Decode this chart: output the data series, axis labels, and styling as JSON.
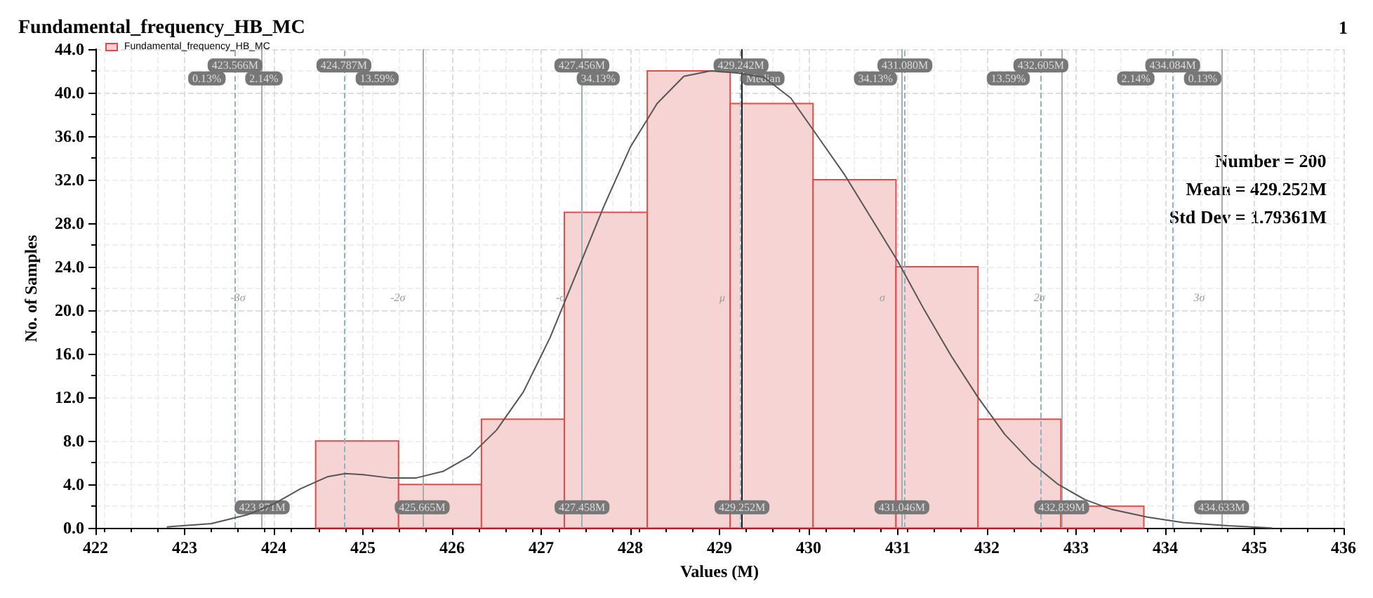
{
  "chart_data": {
    "type": "histogram",
    "title": "Fundamental_frequency_HB_MC",
    "subtitle": "1",
    "xlabel": "Values (M)",
    "ylabel": "No. of Samples",
    "bins": [
      424.47,
      425.4,
      426.33,
      427.26,
      428.19,
      429.12,
      430.05,
      430.98,
      431.9,
      432.83,
      433.76
    ],
    "series": [
      {
        "name": "Fundamental_frequency_HB_MC",
        "color": "#f7d4d4",
        "values": [
          8,
          4,
          10,
          29,
          42,
          39,
          32,
          24,
          10,
          2
        ]
      },
      {
        "type": "line",
        "color": "#555555",
        "x": [
          422.8,
          423.3,
          423.7,
          424.0,
          424.3,
          424.6,
          424.8,
          425.0,
          425.3,
          425.6,
          425.9,
          426.2,
          426.5,
          426.8,
          427.1,
          427.4,
          427.7,
          428.0,
          428.3,
          428.6,
          428.9,
          429.2,
          429.5,
          429.8,
          430.1,
          430.4,
          430.7,
          431.0,
          431.3,
          431.6,
          431.9,
          432.2,
          432.5,
          432.8,
          433.1,
          433.4,
          433.8,
          434.2,
          434.7,
          435.2
        ],
        "values": [
          0.1,
          0.4,
          1.2,
          2.2,
          3.6,
          4.7,
          5.0,
          4.9,
          4.6,
          4.6,
          5.2,
          6.6,
          9.0,
          12.5,
          17.5,
          23.5,
          29.5,
          35.0,
          39.0,
          41.5,
          42.0,
          41.8,
          41.4,
          39.5,
          36.0,
          32.5,
          28.5,
          24.5,
          20.0,
          15.8,
          12.0,
          8.6,
          6.0,
          4.0,
          2.6,
          1.7,
          1.0,
          0.5,
          0.2,
          0
        ]
      }
    ],
    "xlim": [
      422,
      436
    ],
    "xticks": [
      422,
      423,
      424,
      425,
      426,
      427,
      428,
      429,
      430,
      431,
      432,
      433,
      434,
      435,
      436
    ],
    "ylim": [
      0,
      44
    ],
    "yticks": [
      {
        "value": 0,
        "label": "0.0"
      },
      {
        "value": 4,
        "label": "4.0"
      },
      {
        "value": 8,
        "label": "8.0"
      },
      {
        "value": 12,
        "label": "12.0"
      },
      {
        "value": 16,
        "label": "16.0"
      },
      {
        "value": 20,
        "label": "20.0"
      },
      {
        "value": 24,
        "label": "24.0"
      },
      {
        "value": 28,
        "label": "28.0"
      },
      {
        "value": 32,
        "label": "32.0"
      },
      {
        "value": 36,
        "label": "36.0"
      },
      {
        "value": 40,
        "label": "40.0"
      },
      {
        "value": 44,
        "label": "44.0"
      }
    ],
    "grid": true,
    "legend": "top left",
    "ref_lines": [
      {
        "axis": "x",
        "value": 429.252,
        "label": "429.252M",
        "color": "#222222"
      },
      {
        "axis": "x",
        "value": 427.458,
        "label": "427.458M",
        "color": "#aaaaaa"
      },
      {
        "axis": "x",
        "value": 431.046,
        "label": "431.046M",
        "color": "#aaaaaa"
      },
      {
        "axis": "x",
        "value": 425.665,
        "label": "425.665M",
        "color": "#aaaaaa"
      },
      {
        "axis": "x",
        "value": 432.839,
        "label": "432.839M",
        "color": "#aaaaaa"
      },
      {
        "axis": "x",
        "value": 423.871,
        "label": "423.871M",
        "color": "#aaaaaa"
      },
      {
        "axis": "x",
        "value": 434.633,
        "label": "434.633M",
        "color": "#aaaaaa"
      },
      {
        "axis": "x",
        "value": 423.566,
        "label": "423.566M",
        "color": "#8fb3c4",
        "line_style": "dashed"
      },
      {
        "axis": "x",
        "value": 424.787,
        "label": "424.787M",
        "color": "#8fb3c4",
        "line_style": "dashed"
      },
      {
        "axis": "x",
        "value": 427.456,
        "label": "427.456M",
        "color": "#8fb3c4",
        "line_style": "dashed"
      },
      {
        "axis": "x",
        "value": 429.242,
        "label": "429.242M",
        "color": "#8fb3c4",
        "line_style": "dashed"
      },
      {
        "axis": "x",
        "value": 431.08,
        "label": "431.080M",
        "color": "#8fb3c4",
        "line_style": "dashed"
      },
      {
        "axis": "x",
        "value": 432.605,
        "label": "432.605M",
        "color": "#8fb3c4",
        "line_style": "dashed"
      },
      {
        "axis": "x",
        "value": 434.084,
        "label": "434.084M",
        "color": "#8fb3c4",
        "line_style": "dashed"
      }
    ],
    "annotations": [
      {
        "text": "0.13%",
        "x": 423.25,
        "y": 41.3
      },
      {
        "text": "2.14%",
        "x": 423.89,
        "y": 41.3
      },
      {
        "text": "13.59%",
        "x": 425.16,
        "y": 41.3
      },
      {
        "text": "34.13%",
        "x": 427.64,
        "y": 41.3
      },
      {
        "text": "Median",
        "x": 429.49,
        "y": 41.3
      },
      {
        "text": "34.13%",
        "x": 430.75,
        "y": 41.3
      },
      {
        "text": "13.59%",
        "x": 432.24,
        "y": 41.3
      },
      {
        "text": "2.14%",
        "x": 433.67,
        "y": 41.3
      },
      {
        "text": "0.13%",
        "x": 434.42,
        "y": 41.3
      },
      {
        "text": "-3σ",
        "x": 423.871,
        "y": 21.2
      },
      {
        "text": "-2σ",
        "x": 425.665,
        "y": 21.2
      },
      {
        "text": "-σ",
        "x": 427.458,
        "y": 21.2
      },
      {
        "text": "μ",
        "x": 429.252,
        "y": 21.2
      },
      {
        "text": "σ",
        "x": 431.046,
        "y": 21.2
      },
      {
        "text": "2σ",
        "x": 432.839,
        "y": 21.2
      },
      {
        "text": "3σ",
        "x": 434.633,
        "y": 21.2
      },
      "Number = 200",
      "Mean = 429.252M",
      "Std Dev = 1.79361M"
    ]
  }
}
